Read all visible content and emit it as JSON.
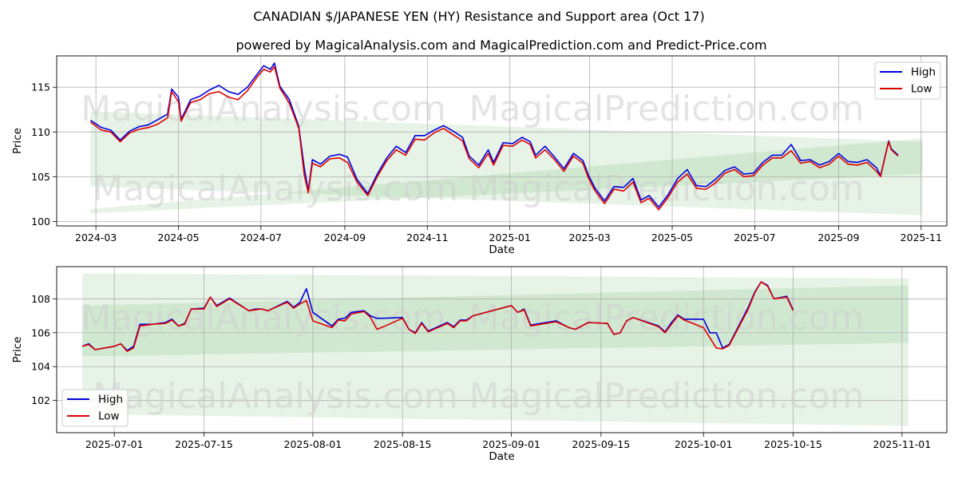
{
  "title": "CANADIAN $/JAPANESE YEN (HY) Resistance and Support area (Oct 17)",
  "subtitle": "powered by MagicalAnalysis.com and MagicalPrediction.com and Predict-Price.com",
  "watermarks": [
    "MagicalAnalysis.com",
    "MagicalPrediction.com"
  ],
  "colors": {
    "high": "#0000dd",
    "low": "#dd0000",
    "band": "#2e9a2e",
    "grid": "#b0b0b0"
  },
  "chart_data": [
    {
      "type": "line",
      "xlabel": "Date",
      "ylabel": "Price",
      "x_ticks": [
        "2024-03",
        "2024-05",
        "2024-07",
        "2024-09",
        "2024-11",
        "2025-01",
        "2025-03",
        "2025-05",
        "2025-07",
        "2025-09",
        "2025-11"
      ],
      "y_ticks": [
        100,
        105,
        110,
        115
      ],
      "ylim": [
        99.5,
        118.5
      ],
      "xlim": [
        "2024-02-01",
        "2025-11-20"
      ],
      "grid": true,
      "legend": "top-right",
      "series": [
        {
          "name": "High",
          "key": "high"
        },
        {
          "name": "Low",
          "key": "low"
        }
      ],
      "data": [
        [
          "2024-02-26",
          111.3,
          111.1
        ],
        [
          "2024-03-05",
          110.5,
          110.2
        ],
        [
          "2024-03-12",
          110.2,
          110.0
        ],
        [
          "2024-03-19",
          109.1,
          108.9
        ],
        [
          "2024-03-26",
          110.1,
          109.9
        ],
        [
          "2024-04-02",
          110.6,
          110.3
        ],
        [
          "2024-04-09",
          110.8,
          110.5
        ],
        [
          "2024-04-16",
          111.4,
          110.9
        ],
        [
          "2024-04-23",
          112.0,
          111.6
        ],
        [
          "2024-04-26",
          114.8,
          114.5
        ],
        [
          "2024-05-01",
          113.9,
          113.4
        ],
        [
          "2024-05-03",
          111.4,
          111.2
        ],
        [
          "2024-05-10",
          113.6,
          113.3
        ],
        [
          "2024-05-17",
          114.0,
          113.6
        ],
        [
          "2024-05-24",
          114.7,
          114.3
        ],
        [
          "2024-05-31",
          115.2,
          114.5
        ],
        [
          "2024-06-07",
          114.5,
          113.9
        ],
        [
          "2024-06-14",
          114.2,
          113.6
        ],
        [
          "2024-06-21",
          115.0,
          114.6
        ],
        [
          "2024-06-28",
          116.4,
          116.1
        ],
        [
          "2024-07-03",
          117.4,
          117.0
        ],
        [
          "2024-07-08",
          117.0,
          116.7
        ],
        [
          "2024-07-11",
          117.7,
          117.3
        ],
        [
          "2024-07-15",
          115.1,
          114.9
        ],
        [
          "2024-07-22",
          113.6,
          113.2
        ],
        [
          "2024-07-29",
          110.6,
          110.4
        ],
        [
          "2024-08-02",
          106.0,
          105.2
        ],
        [
          "2024-08-05",
          103.4,
          103.2
        ],
        [
          "2024-08-08",
          106.9,
          106.5
        ],
        [
          "2024-08-14",
          106.4,
          106.1
        ],
        [
          "2024-08-21",
          107.3,
          107.0
        ],
        [
          "2024-08-28",
          107.5,
          107.1
        ],
        [
          "2024-09-03",
          107.2,
          106.6
        ],
        [
          "2024-09-10",
          104.7,
          104.4
        ],
        [
          "2024-09-18",
          103.1,
          102.9
        ],
        [
          "2024-09-25",
          105.3,
          105.0
        ],
        [
          "2024-10-02",
          107.1,
          106.8
        ],
        [
          "2024-10-09",
          108.4,
          108.0
        ],
        [
          "2024-10-16",
          107.7,
          107.4
        ],
        [
          "2024-10-23",
          109.6,
          109.2
        ],
        [
          "2024-10-30",
          109.6,
          109.1
        ],
        [
          "2024-11-06",
          110.2,
          109.9
        ],
        [
          "2024-11-13",
          110.7,
          110.4
        ],
        [
          "2024-11-20",
          110.1,
          109.7
        ],
        [
          "2024-11-27",
          109.4,
          109.0
        ],
        [
          "2024-12-02",
          107.3,
          107.0
        ],
        [
          "2024-12-09",
          106.3,
          106.0
        ],
        [
          "2024-12-16",
          108.0,
          107.6
        ],
        [
          "2024-12-20",
          106.6,
          106.3
        ],
        [
          "2024-12-27",
          108.8,
          108.5
        ],
        [
          "2025-01-03",
          108.7,
          108.4
        ],
        [
          "2025-01-10",
          109.4,
          109.1
        ],
        [
          "2025-01-16",
          108.9,
          108.6
        ],
        [
          "2025-01-20",
          107.4,
          107.1
        ],
        [
          "2025-01-27",
          108.4,
          108.0
        ],
        [
          "2025-02-03",
          107.2,
          106.9
        ],
        [
          "2025-02-10",
          105.9,
          105.6
        ],
        [
          "2025-02-17",
          107.6,
          107.3
        ],
        [
          "2025-02-24",
          106.8,
          106.5
        ],
        [
          "2025-02-28",
          105.2,
          104.9
        ],
        [
          "2025-03-05",
          103.7,
          103.4
        ],
        [
          "2025-03-12",
          102.3,
          102.0
        ],
        [
          "2025-03-19",
          103.9,
          103.6
        ],
        [
          "2025-03-26",
          103.8,
          103.4
        ],
        [
          "2025-04-02",
          104.8,
          104.4
        ],
        [
          "2025-04-08",
          102.4,
          102.1
        ],
        [
          "2025-04-14",
          102.9,
          102.6
        ],
        [
          "2025-04-21",
          101.6,
          101.3
        ],
        [
          "2025-04-28",
          103.0,
          102.7
        ],
        [
          "2025-05-05",
          104.8,
          104.4
        ],
        [
          "2025-05-12",
          105.8,
          105.3
        ],
        [
          "2025-05-19",
          104.0,
          103.7
        ],
        [
          "2025-05-26",
          103.9,
          103.6
        ],
        [
          "2025-06-02",
          104.7,
          104.3
        ],
        [
          "2025-06-09",
          105.7,
          105.4
        ],
        [
          "2025-06-16",
          106.1,
          105.8
        ],
        [
          "2025-06-23",
          105.3,
          105.0
        ],
        [
          "2025-06-30",
          105.4,
          105.1
        ],
        [
          "2025-07-07",
          106.6,
          106.3
        ],
        [
          "2025-07-14",
          107.4,
          107.1
        ],
        [
          "2025-07-21",
          107.4,
          107.1
        ],
        [
          "2025-07-28",
          108.6,
          107.9
        ],
        [
          "2025-08-04",
          106.8,
          106.5
        ],
        [
          "2025-08-11",
          106.9,
          106.7
        ],
        [
          "2025-08-18",
          106.3,
          106.0
        ],
        [
          "2025-08-25",
          106.7,
          106.4
        ],
        [
          "2025-09-01",
          107.6,
          107.3
        ],
        [
          "2025-09-08",
          106.7,
          106.4
        ],
        [
          "2025-09-15",
          106.6,
          106.3
        ],
        [
          "2025-09-22",
          106.9,
          106.6
        ],
        [
          "2025-09-29",
          106.0,
          105.6
        ],
        [
          "2025-10-02",
          105.1,
          105.0
        ],
        [
          "2025-10-08",
          109.0,
          108.9
        ],
        [
          "2025-10-10",
          108.1,
          108.0
        ],
        [
          "2025-10-15",
          107.4,
          107.3
        ]
      ],
      "bands": [
        {
          "x": [
            "2024-02-26",
            "2025-11-02"
          ],
          "upper": [
            112.3,
            108.9
          ],
          "lower": [
            103.9,
            100.7
          ]
        },
        {
          "x": [
            "2024-02-26",
            "2025-11-02"
          ],
          "upper": [
            101.4,
            109.3
          ],
          "lower": [
            100.9,
            105.3
          ]
        }
      ]
    },
    {
      "type": "line",
      "xlabel": "Date",
      "ylabel": "Price",
      "x_ticks": [
        "2025-07-01",
        "2025-07-15",
        "2025-08-01",
        "2025-08-15",
        "2025-09-01",
        "2025-09-15",
        "2025-10-01",
        "2025-10-15",
        "2025-11-01"
      ],
      "y_ticks": [
        102,
        104,
        106,
        108
      ],
      "ylim": [
        100.1,
        109.9
      ],
      "xlim": [
        "2025-06-22",
        "2025-11-08"
      ],
      "grid": true,
      "legend": "bottom-left",
      "series": [
        {
          "name": "High",
          "key": "high"
        },
        {
          "name": "Low",
          "key": "low"
        }
      ],
      "data": [
        [
          "2025-06-26",
          105.2,
          105.2
        ],
        [
          "2025-06-27",
          105.35,
          105.3
        ],
        [
          "2025-06-28",
          105.0,
          105.0
        ],
        [
          "2025-07-01",
          105.2,
          105.2
        ],
        [
          "2025-07-02",
          105.35,
          105.35
        ],
        [
          "2025-07-03",
          104.95,
          104.9
        ],
        [
          "2025-07-04",
          105.2,
          105.1
        ],
        [
          "2025-07-05",
          106.5,
          106.4
        ],
        [
          "2025-07-07",
          106.5,
          106.5
        ],
        [
          "2025-07-09",
          106.6,
          106.55
        ],
        [
          "2025-07-10",
          106.8,
          106.75
        ],
        [
          "2025-07-11",
          106.4,
          106.4
        ],
        [
          "2025-07-12",
          106.55,
          106.5
        ],
        [
          "2025-07-13",
          107.4,
          107.4
        ],
        [
          "2025-07-15",
          107.45,
          107.4
        ],
        [
          "2025-07-16",
          108.1,
          108.1
        ],
        [
          "2025-07-17",
          107.6,
          107.55
        ],
        [
          "2025-07-19",
          108.05,
          108.0
        ],
        [
          "2025-07-22",
          107.3,
          107.3
        ],
        [
          "2025-07-23",
          107.4,
          107.35
        ],
        [
          "2025-07-24",
          107.4,
          107.4
        ],
        [
          "2025-07-25",
          107.3,
          107.3
        ],
        [
          "2025-07-28",
          107.85,
          107.8
        ],
        [
          "2025-07-29",
          107.5,
          107.45
        ],
        [
          "2025-07-30",
          107.8,
          107.7
        ],
        [
          "2025-07-31",
          108.6,
          107.9
        ],
        [
          "2025-08-01",
          107.2,
          106.7
        ],
        [
          "2025-08-04",
          106.4,
          106.3
        ],
        [
          "2025-08-05",
          106.8,
          106.75
        ],
        [
          "2025-08-06",
          106.85,
          106.7
        ],
        [
          "2025-08-07",
          107.2,
          107.1
        ],
        [
          "2025-08-09",
          107.3,
          107.25
        ],
        [
          "2025-08-10",
          107.0,
          106.9
        ],
        [
          "2025-08-11",
          106.85,
          106.2
        ],
        [
          "2025-08-12",
          106.85,
          106.35
        ],
        [
          "2025-08-15",
          106.9,
          106.85
        ],
        [
          "2025-08-16",
          106.2,
          106.2
        ],
        [
          "2025-08-17",
          106.0,
          105.95
        ],
        [
          "2025-08-18",
          106.6,
          106.55
        ],
        [
          "2025-08-19",
          106.1,
          106.05
        ],
        [
          "2025-08-22",
          106.6,
          106.55
        ],
        [
          "2025-08-23",
          106.35,
          106.3
        ],
        [
          "2025-08-24",
          106.75,
          106.7
        ],
        [
          "2025-08-25",
          106.75,
          106.7
        ],
        [
          "2025-08-26",
          107.0,
          107.0
        ],
        [
          "2025-09-01",
          107.6,
          107.6
        ],
        [
          "2025-09-02",
          107.2,
          107.2
        ],
        [
          "2025-09-03",
          107.4,
          107.35
        ],
        [
          "2025-09-04",
          106.45,
          106.4
        ],
        [
          "2025-09-08",
          106.7,
          106.65
        ],
        [
          "2025-09-10",
          106.3,
          106.3
        ],
        [
          "2025-09-11",
          106.2,
          106.2
        ],
        [
          "2025-09-13",
          106.6,
          106.6
        ],
        [
          "2025-09-16",
          106.55,
          106.55
        ],
        [
          "2025-09-17",
          105.9,
          105.9
        ],
        [
          "2025-09-18",
          106.0,
          106.0
        ],
        [
          "2025-09-19",
          106.7,
          106.7
        ],
        [
          "2025-09-20",
          106.9,
          106.9
        ],
        [
          "2025-09-24",
          106.4,
          106.35
        ],
        [
          "2025-09-25",
          106.05,
          106.0
        ],
        [
          "2025-09-26",
          106.6,
          106.5
        ],
        [
          "2025-09-27",
          107.05,
          107.0
        ],
        [
          "2025-09-28",
          106.8,
          106.75
        ],
        [
          "2025-10-01",
          106.8,
          106.3
        ],
        [
          "2025-10-02",
          106.0,
          105.7
        ],
        [
          "2025-10-03",
          106.0,
          105.1
        ],
        [
          "2025-10-04",
          105.1,
          105.05
        ],
        [
          "2025-10-05",
          105.3,
          105.25
        ],
        [
          "2025-10-08",
          107.5,
          107.4
        ],
        [
          "2025-10-09",
          108.4,
          108.35
        ],
        [
          "2025-10-10",
          109.0,
          109.0
        ],
        [
          "2025-10-11",
          108.8,
          108.75
        ],
        [
          "2025-10-12",
          108.0,
          108.0
        ],
        [
          "2025-10-14",
          108.15,
          108.1
        ],
        [
          "2025-10-15",
          107.35,
          107.3
        ]
      ],
      "bands": [
        {
          "x": [
            "2025-06-26",
            "2025-11-02"
          ],
          "upper": [
            109.5,
            109.2
          ],
          "lower": [
            101.2,
            100.5
          ]
        },
        {
          "x": [
            "2025-06-26",
            "2025-11-02"
          ],
          "upper": [
            107.6,
            108.8
          ],
          "lower": [
            104.6,
            105.4
          ]
        }
      ]
    }
  ]
}
